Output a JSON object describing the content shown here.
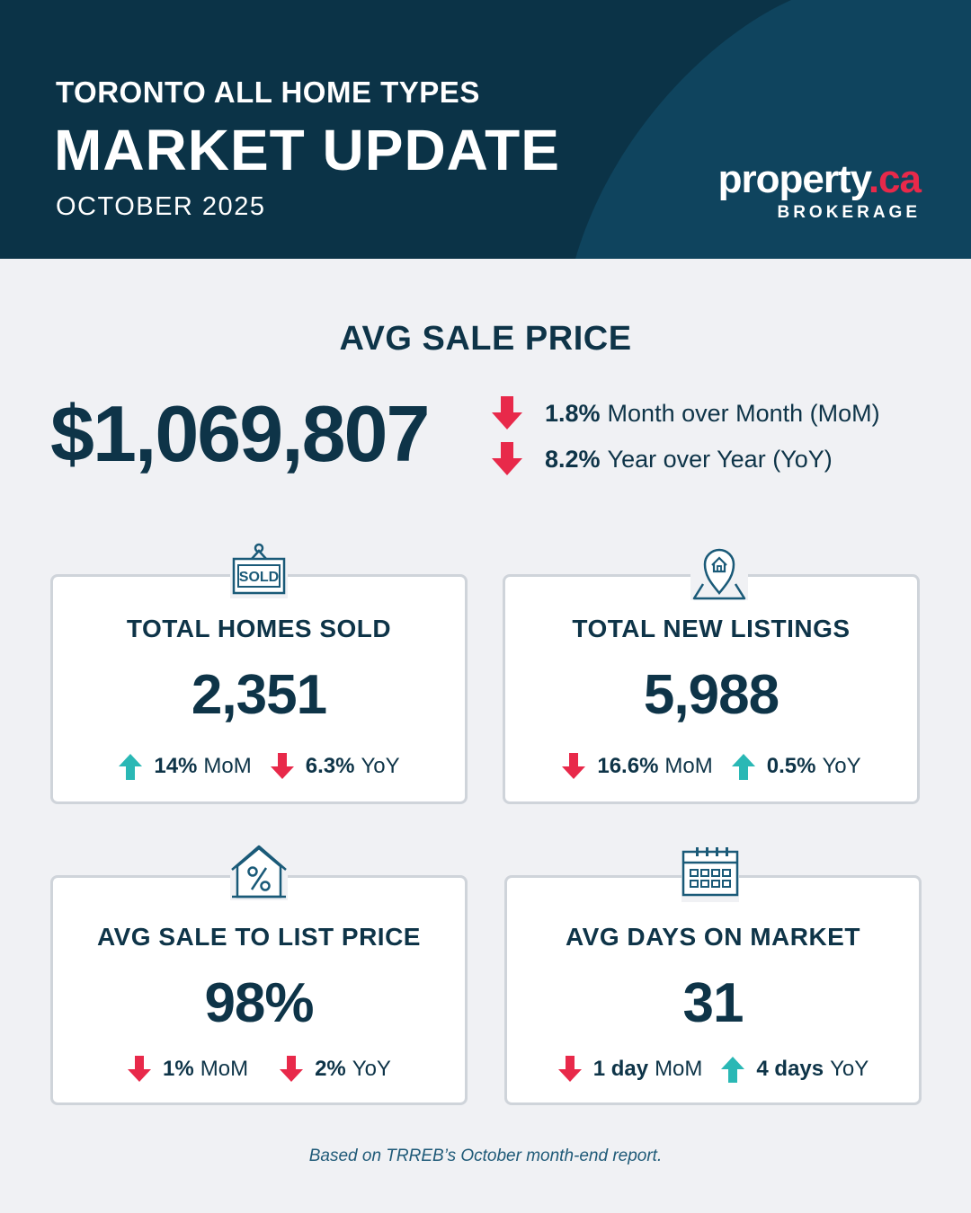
{
  "header": {
    "subtitle": "TORONTO ALL HOME TYPES",
    "title": "MARKET UPDATE",
    "date": "OCTOBER 2025",
    "logo_main": "property",
    "logo_dot": ".",
    "logo_tld": "ca",
    "logo_sub": "BROKERAGE"
  },
  "colors": {
    "navy": "#0b3347",
    "navy_light": "#0f445e",
    "brand_red": "#e8294a",
    "up_teal": "#2ab8b5",
    "down_red": "#e8294a",
    "background": "#f0f1f4"
  },
  "avg_sale_price": {
    "title": "AVG SALE PRICE",
    "value": "$1,069,807",
    "changes": [
      {
        "direction": "down",
        "pct": "1.8%",
        "label": "Month over Month (MoM)"
      },
      {
        "direction": "down",
        "pct": "8.2%",
        "label": "Year over Year (YoY)"
      }
    ]
  },
  "cards": [
    {
      "icon": "sold-sign-icon",
      "title": "TOTAL HOMES SOLD",
      "value": "2,351",
      "icon_text": "SOLD",
      "changes": [
        {
          "direction": "up",
          "pct": "14%",
          "label": "MoM"
        },
        {
          "direction": "down",
          "pct": "6.3%",
          "label": "YoY"
        }
      ]
    },
    {
      "icon": "home-location-pin-icon",
      "title": "TOTAL NEW LISTINGS",
      "value": "5,988",
      "changes": [
        {
          "direction": "down",
          "pct": "16.6%",
          "label": "MoM"
        },
        {
          "direction": "up",
          "pct": "0.5%",
          "label": "YoY"
        }
      ]
    },
    {
      "icon": "house-percent-icon",
      "title": "AVG SALE TO LIST PRICE",
      "value": "98%",
      "changes": [
        {
          "direction": "down",
          "pct": "1%",
          "label": "MoM"
        },
        {
          "direction": "down",
          "pct": "2%",
          "label": "YoY"
        }
      ]
    },
    {
      "icon": "calendar-icon",
      "title": "AVG DAYS ON MARKET",
      "value": "31",
      "changes": [
        {
          "direction": "down",
          "pct": "1 day",
          "label": "MoM"
        },
        {
          "direction": "up",
          "pct": "4 days",
          "label": "YoY"
        }
      ]
    }
  ],
  "footnote": "Based on TRREB’s October month-end report."
}
